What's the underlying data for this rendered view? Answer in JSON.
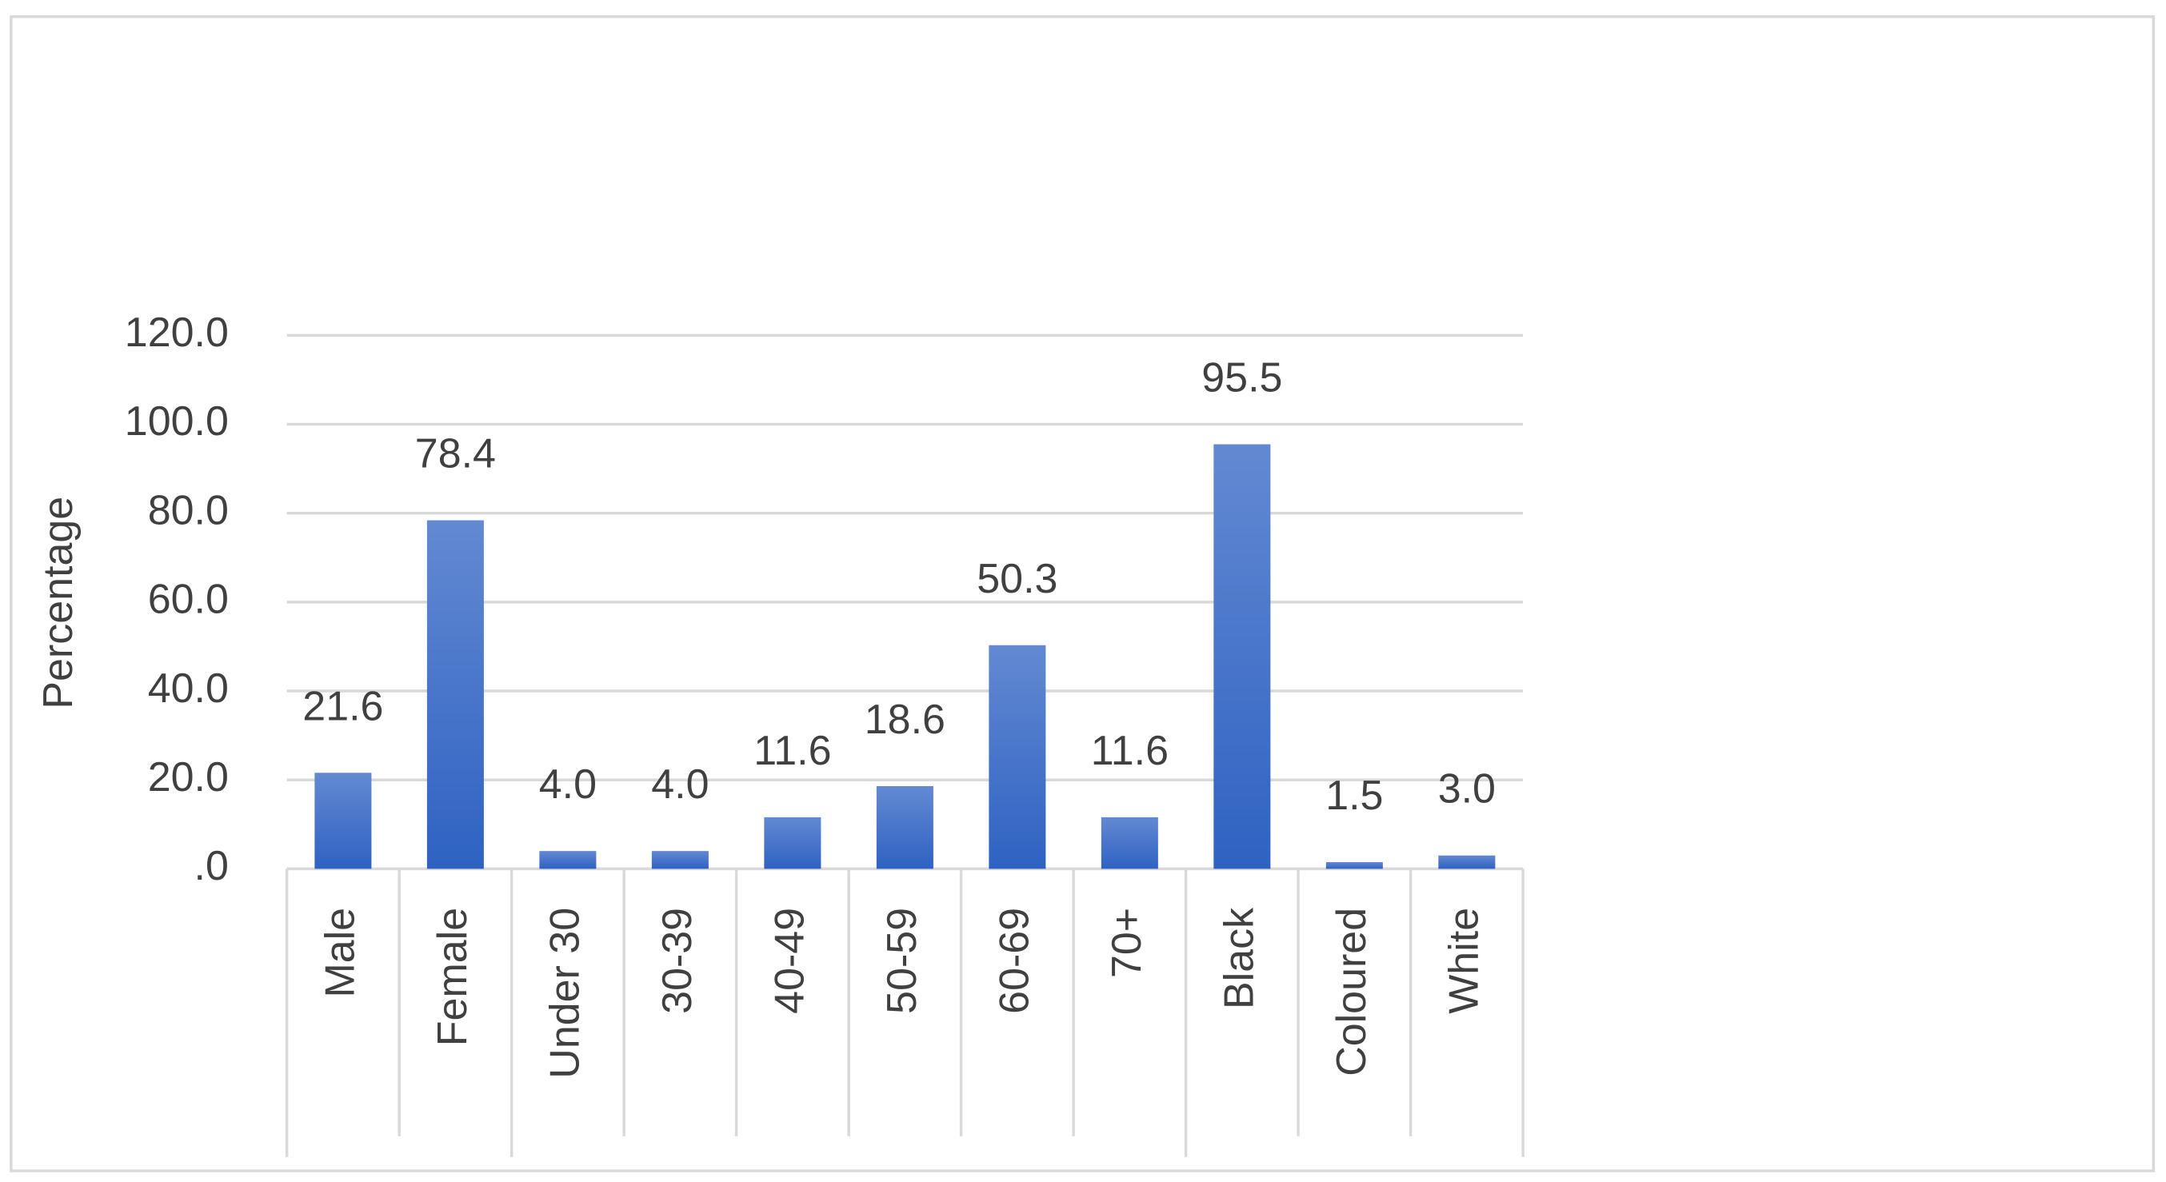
{
  "chart_data": {
    "type": "bar",
    "y_label": "Percentage",
    "categories": [
      "Male",
      "Female",
      "Under 30",
      "30-39",
      "40-49",
      "50-59",
      "60-69",
      "70+",
      "Black",
      "Coloured",
      "White"
    ],
    "values": [
      21.6,
      78.4,
      4.0,
      4.0,
      11.6,
      18.6,
      50.3,
      11.6,
      95.5,
      1.5,
      3.0
    ],
    "value_labels": [
      "21.6",
      "78.4",
      "4.0",
      "4.0",
      "11.6",
      "18.6",
      "50.3",
      "11.6",
      "95.5",
      "1.5",
      "3.0"
    ],
    "color": "#4472c4",
    "ylim": [
      0,
      120
    ],
    "yticks": [
      {
        "value": 0,
        "label": ".0"
      },
      {
        "value": 20,
        "label": "20.0"
      },
      {
        "value": 40,
        "label": "40.0"
      },
      {
        "value": 60,
        "label": "60.0"
      },
      {
        "value": 80,
        "label": "80.0"
      },
      {
        "value": 100,
        "label": "100.0"
      },
      {
        "value": 120,
        "label": "120.0"
      }
    ],
    "grid": true
  }
}
